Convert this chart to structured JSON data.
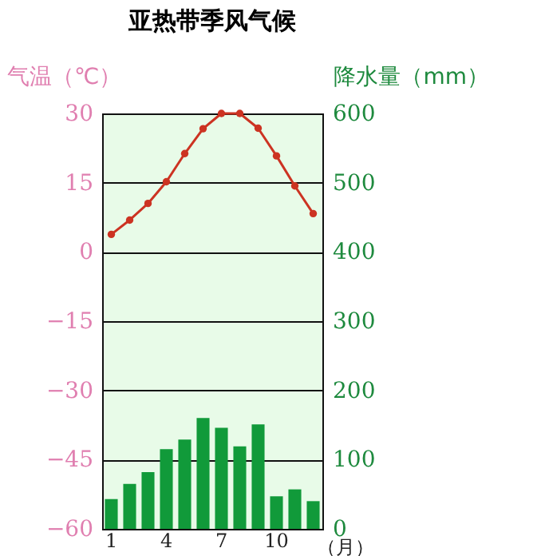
{
  "chart_data": {
    "type": "bar",
    "title": "亚热带季风气候",
    "xlabel": "（月）",
    "ylabel": "气温（℃）",
    "y2label": "降水量（mm）",
    "categories": [
      "1",
      null,
      null,
      "4",
      null,
      null,
      "7",
      null,
      null,
      "10",
      null,
      null
    ],
    "series": [
      {
        "axis": "y2",
        "color": "#119a3a",
        "values": [
          43,
          65,
          82,
          115,
          129,
          160,
          146,
          119,
          151,
          47,
          57,
          40
        ]
      },
      {
        "type": "line",
        "axis": "y",
        "color": "#cc3322",
        "values": [
          3.8,
          6.9,
          10.5,
          15.2,
          21.3,
          26.7,
          30,
          30,
          26.8,
          20.8,
          14.3,
          8.3
        ]
      }
    ],
    "ylim": [
      -60,
      30
    ],
    "yticks": [
      -60,
      -45,
      -30,
      -15,
      0,
      15,
      30
    ],
    "y2lim": [
      0,
      600
    ],
    "y2ticks": [
      0,
      100,
      200,
      300,
      400,
      500,
      600
    ],
    "grid": "y",
    "marker": "circle"
  }
}
